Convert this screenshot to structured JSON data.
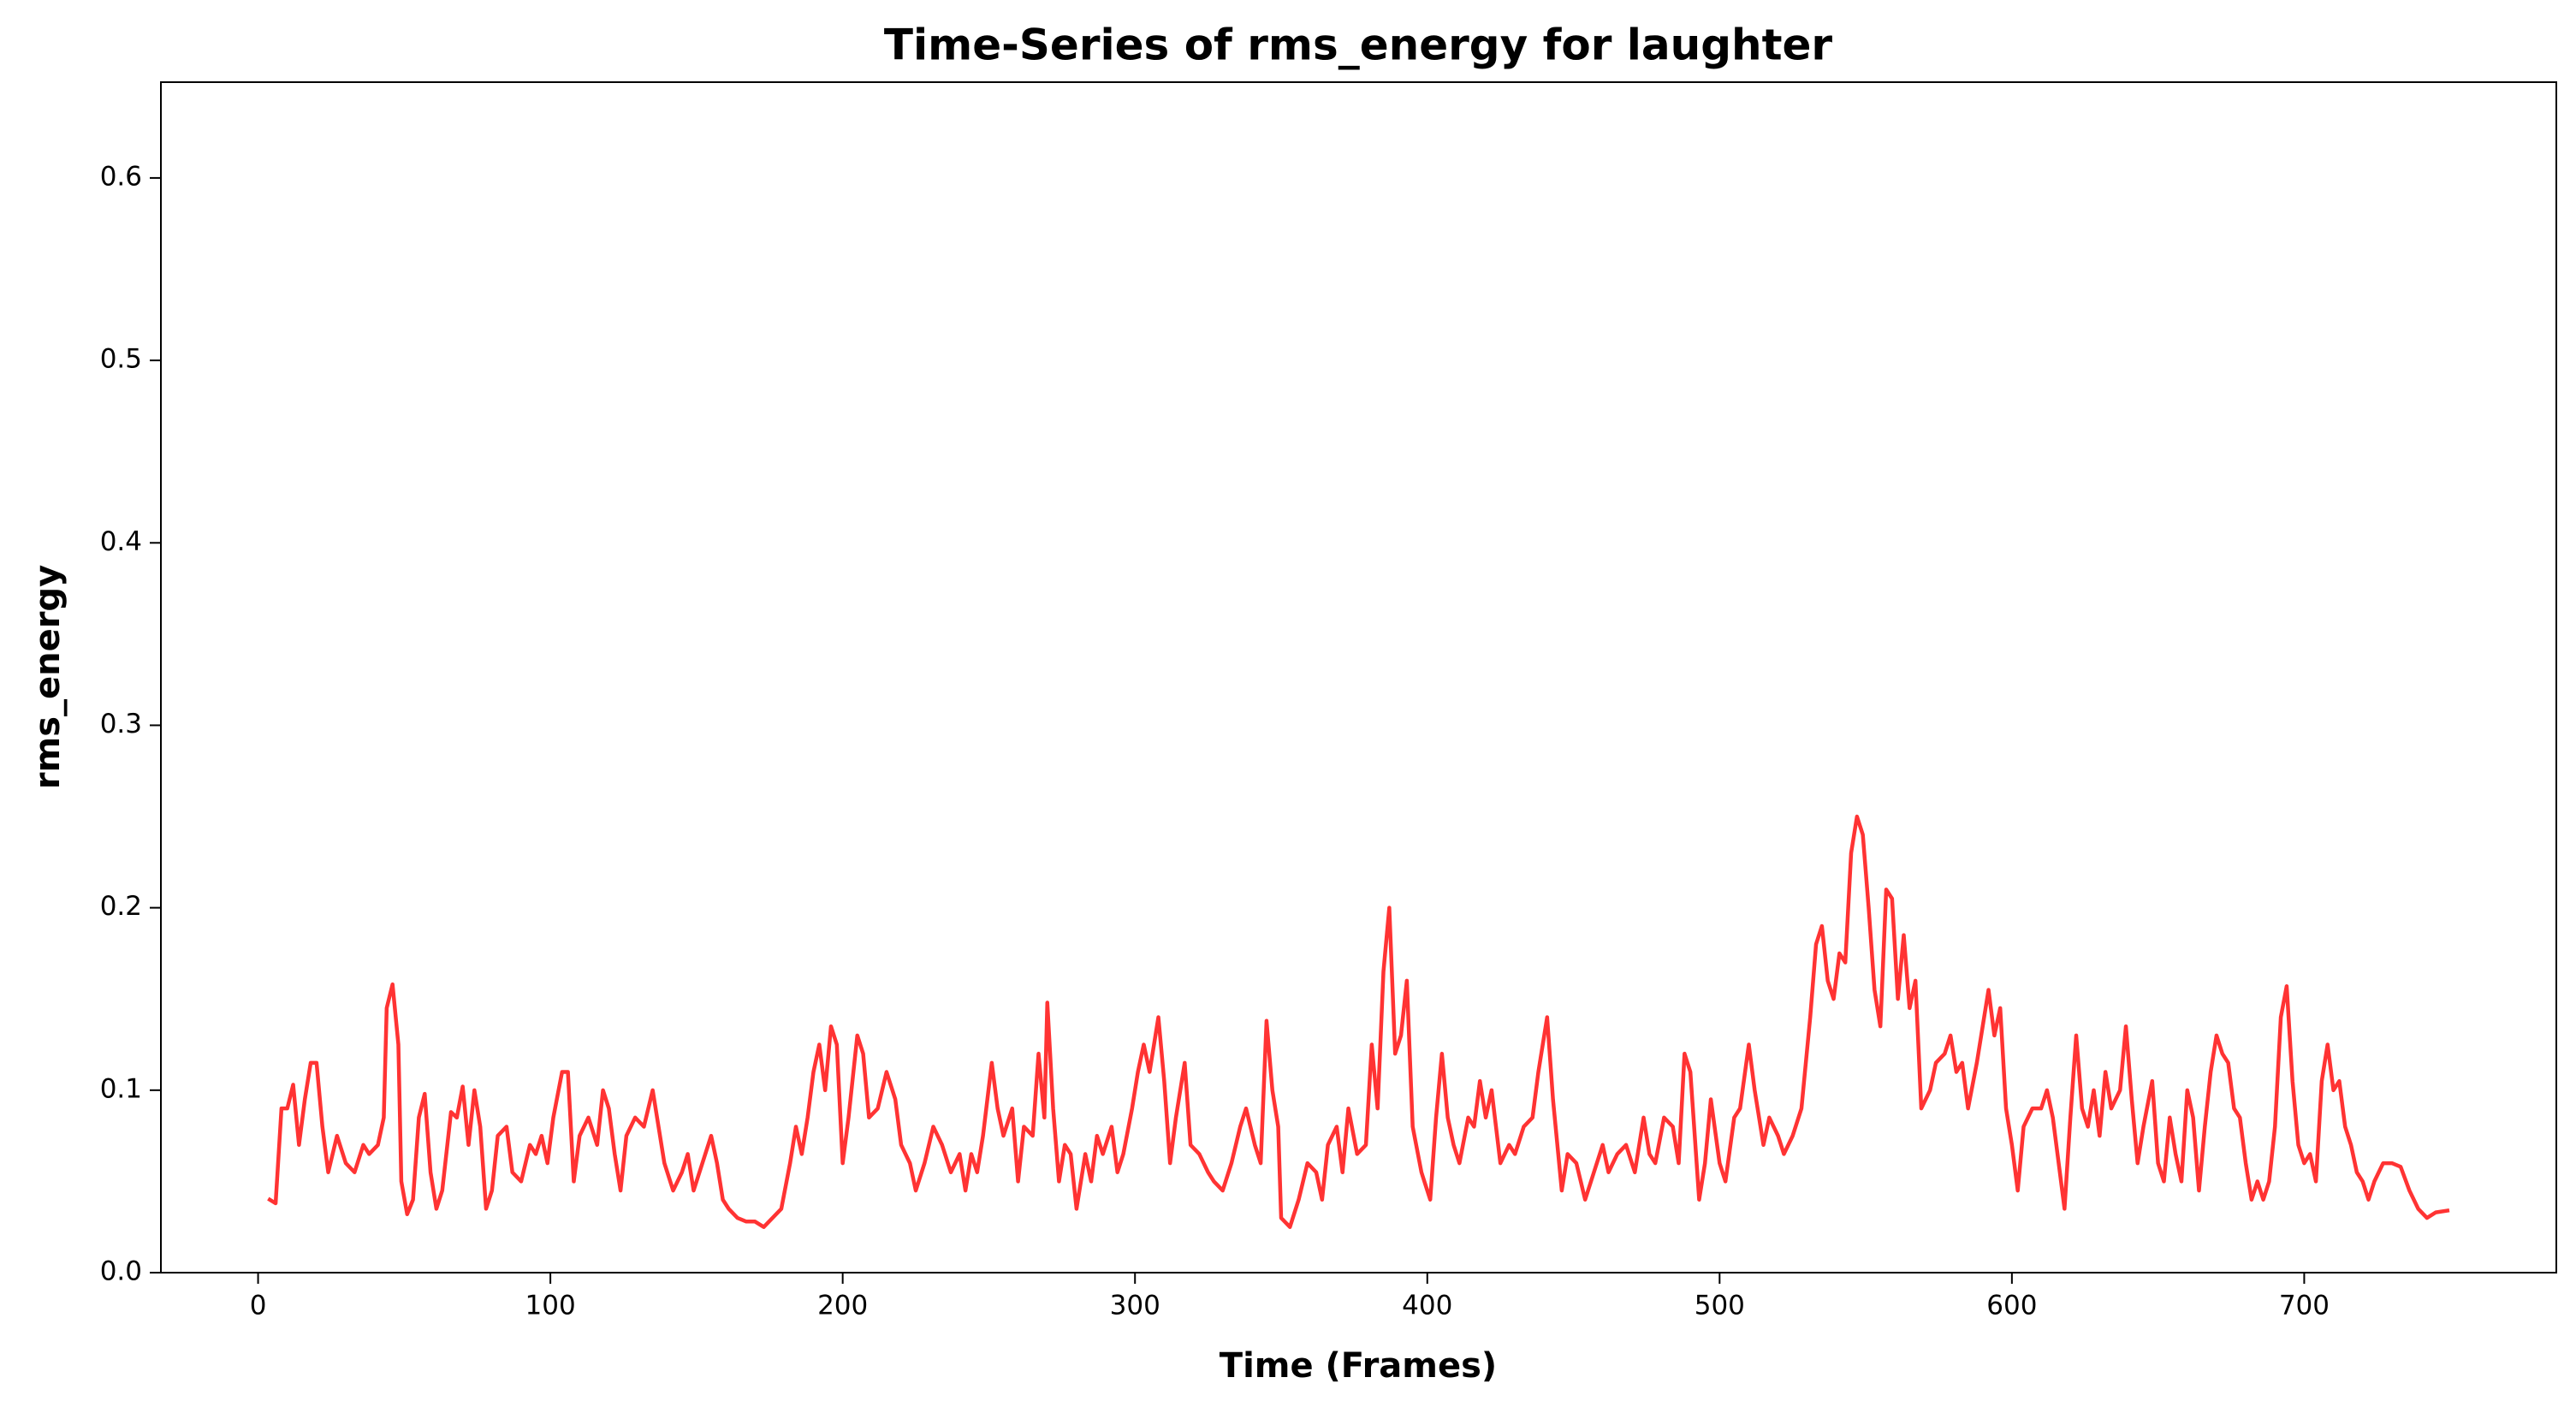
{
  "chart_data": {
    "type": "line",
    "title": "Time-Series of rms_energy for laughter",
    "x_label": "Time (Frames)",
    "y_label": "rms_energy",
    "color": "#ff3333",
    "grid": false,
    "xlim": [
      -33.25,
      786.25
    ],
    "ylim": [
      0,
      0.6525
    ],
    "xticks": [
      0,
      100,
      200,
      300,
      400,
      500,
      600,
      700
    ],
    "yticks": [
      {
        "value": 0,
        "label": "0.0"
      },
      0.1,
      0.2,
      0.3,
      0.4,
      0.5,
      0.6
    ],
    "x": [
      4,
      6,
      8,
      10,
      12,
      14,
      16,
      18,
      20,
      22,
      24,
      27,
      30,
      33,
      36,
      38,
      41,
      43,
      44,
      46,
      48,
      49,
      51,
      53,
      55,
      57,
      59,
      61,
      63,
      66,
      68,
      70,
      72,
      74,
      76,
      78,
      80,
      82,
      85,
      87,
      90,
      93,
      95,
      97,
      99,
      101,
      104,
      106,
      108,
      110,
      113,
      116,
      118,
      120,
      122,
      124,
      126,
      129,
      132,
      135,
      137,
      139,
      142,
      145,
      147,
      149,
      152,
      155,
      157,
      159,
      161,
      164,
      167,
      170,
      173,
      176,
      179,
      182,
      184,
      186,
      188,
      190,
      192,
      194,
      196,
      198,
      200,
      202,
      205,
      207,
      209,
      212,
      215,
      218,
      220,
      223,
      225,
      228,
      231,
      234,
      237,
      240,
      242,
      244,
      246,
      248,
      251,
      253,
      255,
      258,
      260,
      262,
      265,
      267,
      269,
      270,
      272,
      274,
      276,
      278,
      280,
      283,
      285,
      287,
      289,
      292,
      294,
      296,
      299,
      301,
      303,
      305,
      308,
      310,
      312,
      314,
      317,
      319,
      322,
      325,
      327,
      330,
      333,
      336,
      338,
      341,
      343,
      345,
      347,
      349,
      350,
      353,
      356,
      359,
      362,
      364,
      366,
      369,
      371,
      373,
      376,
      379,
      381,
      383,
      385,
      387,
      389,
      391,
      393,
      395,
      398,
      401,
      403,
      405,
      407,
      409,
      411,
      414,
      416,
      418,
      420,
      422,
      425,
      428,
      430,
      433,
      436,
      438,
      441,
      443,
      446,
      448,
      451,
      454,
      457,
      460,
      462,
      465,
      468,
      471,
      474,
      476,
      478,
      481,
      484,
      486,
      488,
      490,
      493,
      495,
      497,
      500,
      502,
      505,
      507,
      510,
      512,
      515,
      517,
      520,
      522,
      525,
      528,
      531,
      533,
      535,
      537,
      539,
      541,
      543,
      545,
      547,
      549,
      551,
      553,
      555,
      557,
      559,
      561,
      563,
      565,
      567,
      569,
      572,
      574,
      577,
      579,
      581,
      583,
      585,
      588,
      590,
      592,
      594,
      596,
      598,
      600,
      602,
      604,
      607,
      610,
      612,
      614,
      616,
      618,
      620,
      622,
      624,
      626,
      628,
      630,
      632,
      634,
      637,
      639,
      641,
      643,
      645,
      648,
      650,
      652,
      654,
      656,
      658,
      660,
      662,
      664,
      666,
      668,
      670,
      672,
      674,
      676,
      678,
      680,
      682,
      684,
      686,
      688,
      690,
      692,
      694,
      696,
      698,
      700,
      702,
      704,
      706,
      708,
      710,
      712,
      714,
      716,
      718,
      720,
      722,
      724,
      727,
      730,
      733,
      736,
      739,
      742,
      745,
      749
    ],
    "values": [
      0.04,
      0.038,
      0.09,
      0.09,
      0.103,
      0.07,
      0.095,
      0.115,
      0.115,
      0.08,
      0.055,
      0.075,
      0.06,
      0.055,
      0.07,
      0.065,
      0.07,
      0.085,
      0.145,
      0.158,
      0.125,
      0.05,
      0.032,
      0.04,
      0.085,
      0.098,
      0.055,
      0.035,
      0.045,
      0.088,
      0.085,
      0.102,
      0.07,
      0.1,
      0.08,
      0.035,
      0.045,
      0.075,
      0.08,
      0.055,
      0.05,
      0.07,
      0.065,
      0.075,
      0.06,
      0.085,
      0.11,
      0.11,
      0.05,
      0.075,
      0.085,
      0.07,
      0.1,
      0.09,
      0.065,
      0.045,
      0.075,
      0.085,
      0.08,
      0.1,
      0.08,
      0.06,
      0.045,
      0.055,
      0.065,
      0.045,
      0.06,
      0.075,
      0.06,
      0.04,
      0.035,
      0.03,
      0.028,
      0.028,
      0.025,
      0.03,
      0.035,
      0.06,
      0.08,
      0.065,
      0.085,
      0.11,
      0.125,
      0.1,
      0.135,
      0.125,
      0.06,
      0.085,
      0.13,
      0.12,
      0.085,
      0.09,
      0.11,
      0.095,
      0.07,
      0.06,
      0.045,
      0.06,
      0.08,
      0.07,
      0.055,
      0.065,
      0.045,
      0.065,
      0.055,
      0.075,
      0.115,
      0.09,
      0.075,
      0.09,
      0.05,
      0.08,
      0.075,
      0.12,
      0.085,
      0.148,
      0.09,
      0.05,
      0.07,
      0.065,
      0.035,
      0.065,
      0.05,
      0.075,
      0.065,
      0.08,
      0.055,
      0.065,
      0.09,
      0.11,
      0.125,
      0.11,
      0.14,
      0.105,
      0.06,
      0.085,
      0.115,
      0.07,
      0.065,
      0.055,
      0.05,
      0.045,
      0.06,
      0.08,
      0.09,
      0.07,
      0.06,
      0.138,
      0.1,
      0.08,
      0.03,
      0.025,
      0.04,
      0.06,
      0.055,
      0.04,
      0.07,
      0.08,
      0.055,
      0.09,
      0.065,
      0.07,
      0.125,
      0.09,
      0.165,
      0.2,
      0.12,
      0.13,
      0.16,
      0.08,
      0.055,
      0.04,
      0.085,
      0.12,
      0.085,
      0.07,
      0.06,
      0.085,
      0.08,
      0.105,
      0.085,
      0.1,
      0.06,
      0.07,
      0.065,
      0.08,
      0.085,
      0.11,
      0.14,
      0.095,
      0.045,
      0.065,
      0.06,
      0.04,
      0.055,
      0.07,
      0.055,
      0.065,
      0.07,
      0.055,
      0.085,
      0.065,
      0.06,
      0.085,
      0.08,
      0.06,
      0.12,
      0.11,
      0.04,
      0.06,
      0.095,
      0.06,
      0.05,
      0.085,
      0.09,
      0.125,
      0.1,
      0.07,
      0.085,
      0.075,
      0.065,
      0.075,
      0.09,
      0.14,
      0.18,
      0.19,
      0.16,
      0.15,
      0.175,
      0.17,
      0.23,
      0.25,
      0.24,
      0.2,
      0.155,
      0.135,
      0.21,
      0.205,
      0.15,
      0.185,
      0.145,
      0.16,
      0.09,
      0.1,
      0.115,
      0.12,
      0.13,
      0.11,
      0.115,
      0.09,
      0.115,
      0.135,
      0.155,
      0.13,
      0.145,
      0.09,
      0.07,
      0.045,
      0.08,
      0.09,
      0.09,
      0.1,
      0.085,
      0.06,
      0.035,
      0.085,
      0.13,
      0.09,
      0.08,
      0.1,
      0.075,
      0.11,
      0.09,
      0.1,
      0.135,
      0.095,
      0.06,
      0.08,
      0.105,
      0.06,
      0.05,
      0.085,
      0.065,
      0.05,
      0.1,
      0.085,
      0.045,
      0.08,
      0.11,
      0.13,
      0.12,
      0.115,
      0.09,
      0.085,
      0.06,
      0.04,
      0.05,
      0.04,
      0.05,
      0.08,
      0.14,
      0.157,
      0.105,
      0.07,
      0.06,
      0.065,
      0.05,
      0.105,
      0.125,
      0.1,
      0.105,
      0.08,
      0.07,
      0.055,
      0.05,
      0.04,
      0.05,
      0.06,
      0.06,
      0.058,
      0.045,
      0.035,
      0.03,
      0.033,
      0.034
    ]
  }
}
